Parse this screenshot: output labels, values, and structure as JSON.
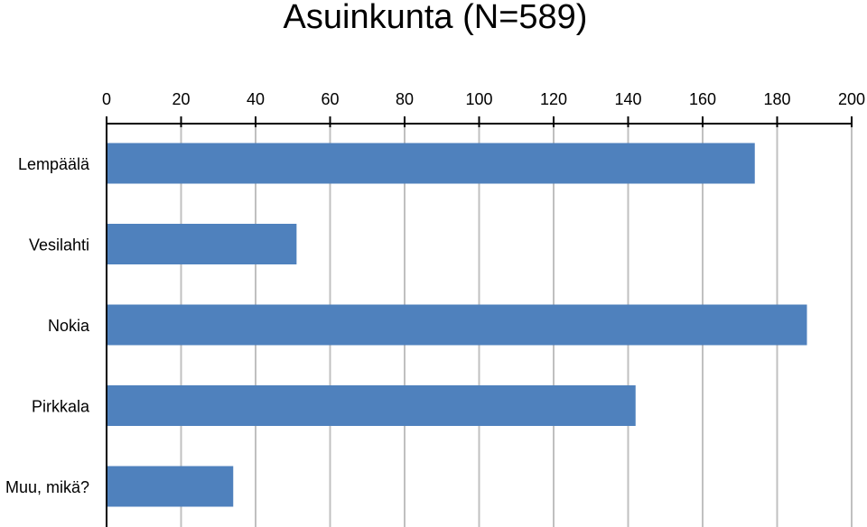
{
  "chart_data": {
    "type": "bar",
    "orientation": "horizontal",
    "title": "Asuinkunta (N=589)",
    "xlabel": "",
    "ylabel": "",
    "categories": [
      "Lempäälä",
      "Vesilahti",
      "Nokia",
      "Pirkkala",
      "Muu, mikä?"
    ],
    "values": [
      174,
      51,
      188,
      142,
      34
    ],
    "xlim": [
      0,
      200
    ],
    "xticks": [
      0,
      20,
      40,
      60,
      80,
      100,
      120,
      140,
      160,
      180,
      200
    ],
    "x_axis_position": "top",
    "grid": true,
    "legend": "none",
    "bar_color": "#4F81BD",
    "grid_color": "#C0C0C0",
    "axis_color": "#000000"
  }
}
